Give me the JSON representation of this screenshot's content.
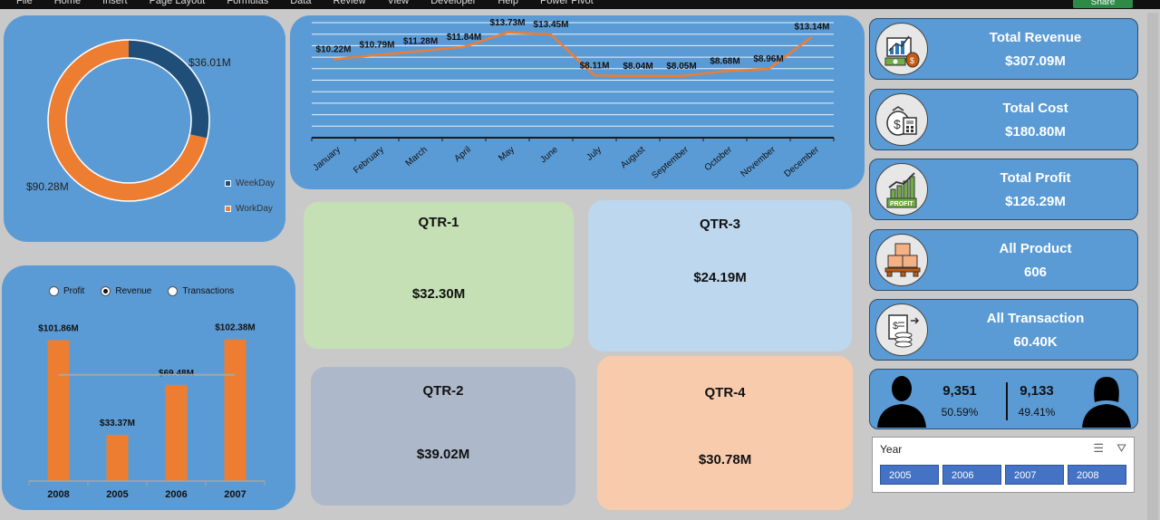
{
  "ribbon": {
    "tabs": [
      "File",
      "Home",
      "Insert",
      "Page Layout",
      "Formulas",
      "Data",
      "Review",
      "View",
      "Developer",
      "Help",
      "Power Pivot"
    ],
    "share_label": "Share"
  },
  "colors": {
    "panel_blue": "#5b9bd5",
    "orange": "#ed7d31",
    "navy": "#1f4e79"
  },
  "donut": {
    "weekday_label": "$36.01M",
    "workday_label": "$90.28M",
    "legend": [
      "WeekDay",
      "WorkDay"
    ]
  },
  "chart_data": [
    {
      "type": "line",
      "categories": [
        "January",
        "February",
        "March",
        "April",
        "May",
        "June",
        "July",
        "August",
        "September",
        "October",
        "November",
        "December"
      ],
      "values": [
        10.22,
        10.79,
        11.28,
        11.84,
        13.73,
        13.45,
        8.11,
        8.04,
        8.05,
        8.68,
        8.96,
        13.14
      ],
      "data_labels": [
        "$10.22M",
        "$10.79M",
        "$11.28M",
        "$11.84M",
        "$13.73M",
        "$13.45M",
        "$8.11M",
        "$8.04M",
        "$8.05M",
        "$8.68M",
        "$8.96M",
        "$13.14M"
      ],
      "ylim": [
        0,
        15
      ],
      "grid": true
    },
    {
      "type": "pie",
      "categories": [
        "WeekDay",
        "WorkDay"
      ],
      "values": [
        36.01,
        90.28
      ],
      "data_labels": [
        "$36.01M",
        "$90.28M"
      ]
    },
    {
      "type": "bar",
      "categories": [
        "2008",
        "2005",
        "2006",
        "2007"
      ],
      "values": [
        101.86,
        33.37,
        69.48,
        102.38
      ],
      "data_labels": [
        "$101.86M",
        "$33.37M",
        "$69.48M",
        "$102.38M"
      ],
      "ylim": [
        0,
        110
      ],
      "average": 76.77
    }
  ],
  "year_chart": {
    "options": [
      "Profit",
      "Revenue",
      "Transactions"
    ],
    "selected": "Revenue"
  },
  "quarters": [
    {
      "title": "QTR-1",
      "value": "$32.30M",
      "color": "#c5e0b4"
    },
    {
      "title": "QTR-3",
      "value": "$24.19M",
      "color": "#bdd7ee"
    },
    {
      "title": "QTR-2",
      "value": "$39.02M",
      "color": "#adb9ca"
    },
    {
      "title": "QTR-4",
      "value": "$30.78M",
      "color": "#f8cbad"
    }
  ],
  "kpis": [
    {
      "title": "Total Revenue",
      "value": "$307.09M",
      "icon": "revenue-icon"
    },
    {
      "title": "Total Cost",
      "value": "$180.80M",
      "icon": "cost-calculator-icon"
    },
    {
      "title": "Total Profit",
      "value": "$126.29M",
      "icon": "profit-chart-icon",
      "badge": "PROFIT"
    },
    {
      "title": "All Product",
      "value": "606",
      "icon": "product-boxes-icon"
    },
    {
      "title": "All Transaction",
      "value": "60.40K",
      "icon": "transaction-icon"
    }
  ],
  "gender": {
    "male_count": "9,351",
    "male_pct": "50.59%",
    "female_count": "9,133",
    "female_pct": "49.41%"
  },
  "slicer": {
    "title": "Year",
    "years": [
      "2005",
      "2006",
      "2007",
      "2008"
    ]
  }
}
